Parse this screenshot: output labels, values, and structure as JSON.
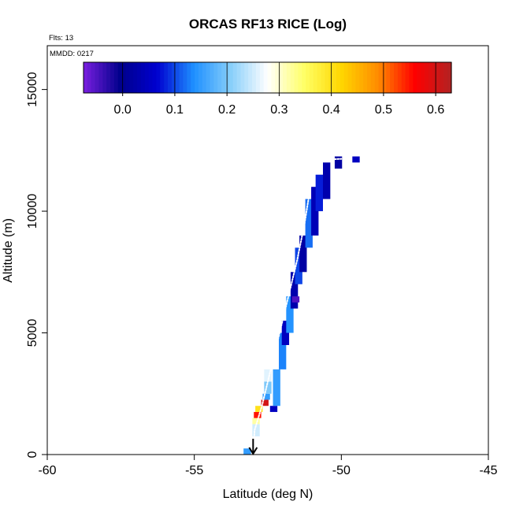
{
  "chart_data": {
    "type": "heatmap",
    "title": "ORCAS RF13 RICE (Log)",
    "annotations": {
      "flights": "Flts: 13",
      "date": "MMDD: 0217"
    },
    "xlabel": "Latitude (deg N)",
    "ylabel": "Altitude (m)",
    "xlim": [
      -60,
      -45
    ],
    "ylim": [
      0,
      16800
    ],
    "xticks": [
      -60,
      -55,
      -50,
      -45
    ],
    "yticks": [
      0,
      5000,
      10000,
      15000
    ],
    "grid": false,
    "colorbar": {
      "placement": "top, inside plot",
      "range": [
        -0.075,
        0.63
      ],
      "ticks": [
        0.0,
        0.1,
        0.2,
        0.3,
        0.4,
        0.5,
        0.6
      ],
      "tick_labels": [
        "0.0",
        "0.1",
        "0.2",
        "0.3",
        "0.4",
        "0.5",
        "0.6"
      ],
      "colors": [
        "#7a1fe0",
        "#00008b",
        "#0000d0",
        "#1e90ff",
        "#87cefa",
        "#ffffff",
        "#ffff66",
        "#ffd700",
        "#ff8c00",
        "#ff0000",
        "#b22222"
      ]
    },
    "cell_size": {
      "lat_deg": 0.25,
      "alt_m": 250
    },
    "columns": [
      {
        "lat": -53.2,
        "alt_min": 0,
        "alt_max": 250,
        "value": 0.15
      },
      {
        "lat": -52.9,
        "alt_min": 750,
        "alt_max": 1250,
        "value": 0.25
      },
      {
        "lat": -52.9,
        "alt_min": 1250,
        "alt_max": 1500,
        "value": 0.32
      },
      {
        "lat": -52.85,
        "alt_min": 1500,
        "alt_max": 1750,
        "value": 0.55
      },
      {
        "lat": -52.8,
        "alt_min": 1750,
        "alt_max": 2000,
        "value": 0.4
      },
      {
        "lat": -52.6,
        "alt_min": 2000,
        "alt_max": 2250,
        "value": 0.6
      },
      {
        "lat": -52.55,
        "alt_min": 2250,
        "alt_max": 2500,
        "value": 0.15
      },
      {
        "lat": -52.5,
        "alt_min": 2500,
        "alt_max": 3000,
        "value": 0.2
      },
      {
        "lat": -52.5,
        "alt_min": 3000,
        "alt_max": 3500,
        "value": 0.26
      },
      {
        "lat": -52.3,
        "alt_min": 1750,
        "alt_max": 2000,
        "value": 0.05
      },
      {
        "lat": -52.2,
        "alt_min": 2000,
        "alt_max": 3500,
        "value": 0.15
      },
      {
        "lat": -52.0,
        "alt_min": 3500,
        "alt_max": 5000,
        "value": 0.13
      },
      {
        "lat": -51.9,
        "alt_min": 4500,
        "alt_max": 5500,
        "value": 0.05
      },
      {
        "lat": -51.75,
        "alt_min": 5000,
        "alt_max": 6500,
        "value": 0.14
      },
      {
        "lat": -51.6,
        "alt_min": 6000,
        "alt_max": 7500,
        "value": 0.03
      },
      {
        "lat": -51.55,
        "alt_min": 6250,
        "alt_max": 6500,
        "value": -0.05
      },
      {
        "lat": -51.45,
        "alt_min": 7000,
        "alt_max": 8500,
        "value": 0.1
      },
      {
        "lat": -51.3,
        "alt_min": 7500,
        "alt_max": 9000,
        "value": 0.02
      },
      {
        "lat": -51.1,
        "alt_min": 8500,
        "alt_max": 10500,
        "value": 0.12
      },
      {
        "lat": -50.9,
        "alt_min": 9000,
        "alt_max": 11000,
        "value": 0.04
      },
      {
        "lat": -50.75,
        "alt_min": 10000,
        "alt_max": 11500,
        "value": 0.08
      },
      {
        "lat": -50.5,
        "alt_min": 10500,
        "alt_max": 12000,
        "value": 0.03
      },
      {
        "lat": -50.1,
        "alt_min": 11750,
        "alt_max": 12250,
        "value": 0.02
      },
      {
        "lat": -49.5,
        "alt_min": 12000,
        "alt_max": 12250,
        "value": 0.05
      }
    ],
    "flight_track": [
      {
        "lat": -53.0,
        "alt": 0
      },
      {
        "lat": -52.95,
        "alt": 1000
      },
      {
        "lat": -52.7,
        "alt": 2000
      },
      {
        "lat": -52.4,
        "alt": 3500
      },
      {
        "lat": -52.1,
        "alt": 5000
      },
      {
        "lat": -51.8,
        "alt": 6500
      },
      {
        "lat": -51.5,
        "alt": 8000
      },
      {
        "lat": -51.25,
        "alt": 9500
      },
      {
        "lat": -51.05,
        "alt": 11000
      },
      {
        "lat": -50.95,
        "alt": 12100
      },
      {
        "lat": -50.0,
        "alt": 12150
      }
    ],
    "marker": {
      "symbol": "down-arrow",
      "lat": -53.0,
      "alt_from": 650,
      "alt_to": 0
    }
  }
}
